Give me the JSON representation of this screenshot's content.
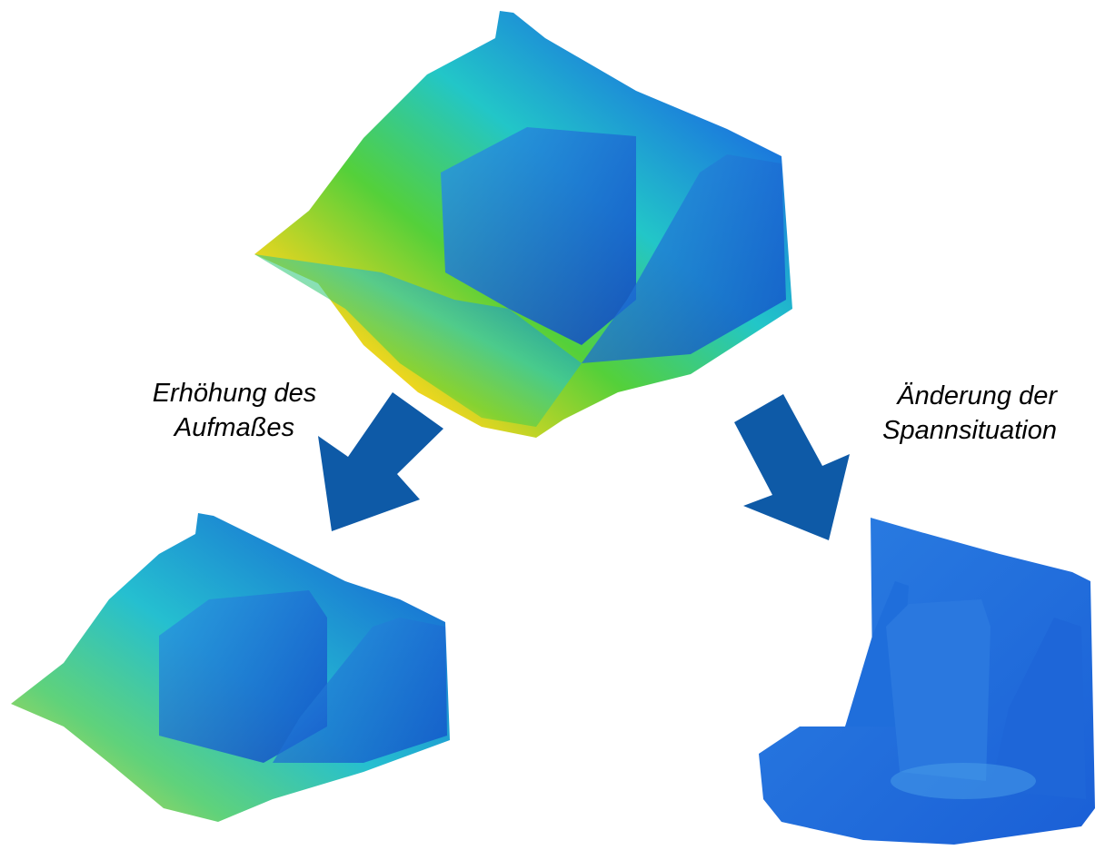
{
  "annotations": [
    {
      "lines": [
        "Erhöhung des",
        "Aufmaßes"
      ]
    },
    {
      "lines": [
        "Änderung der",
        "Spannsituation"
      ]
    }
  ]
}
